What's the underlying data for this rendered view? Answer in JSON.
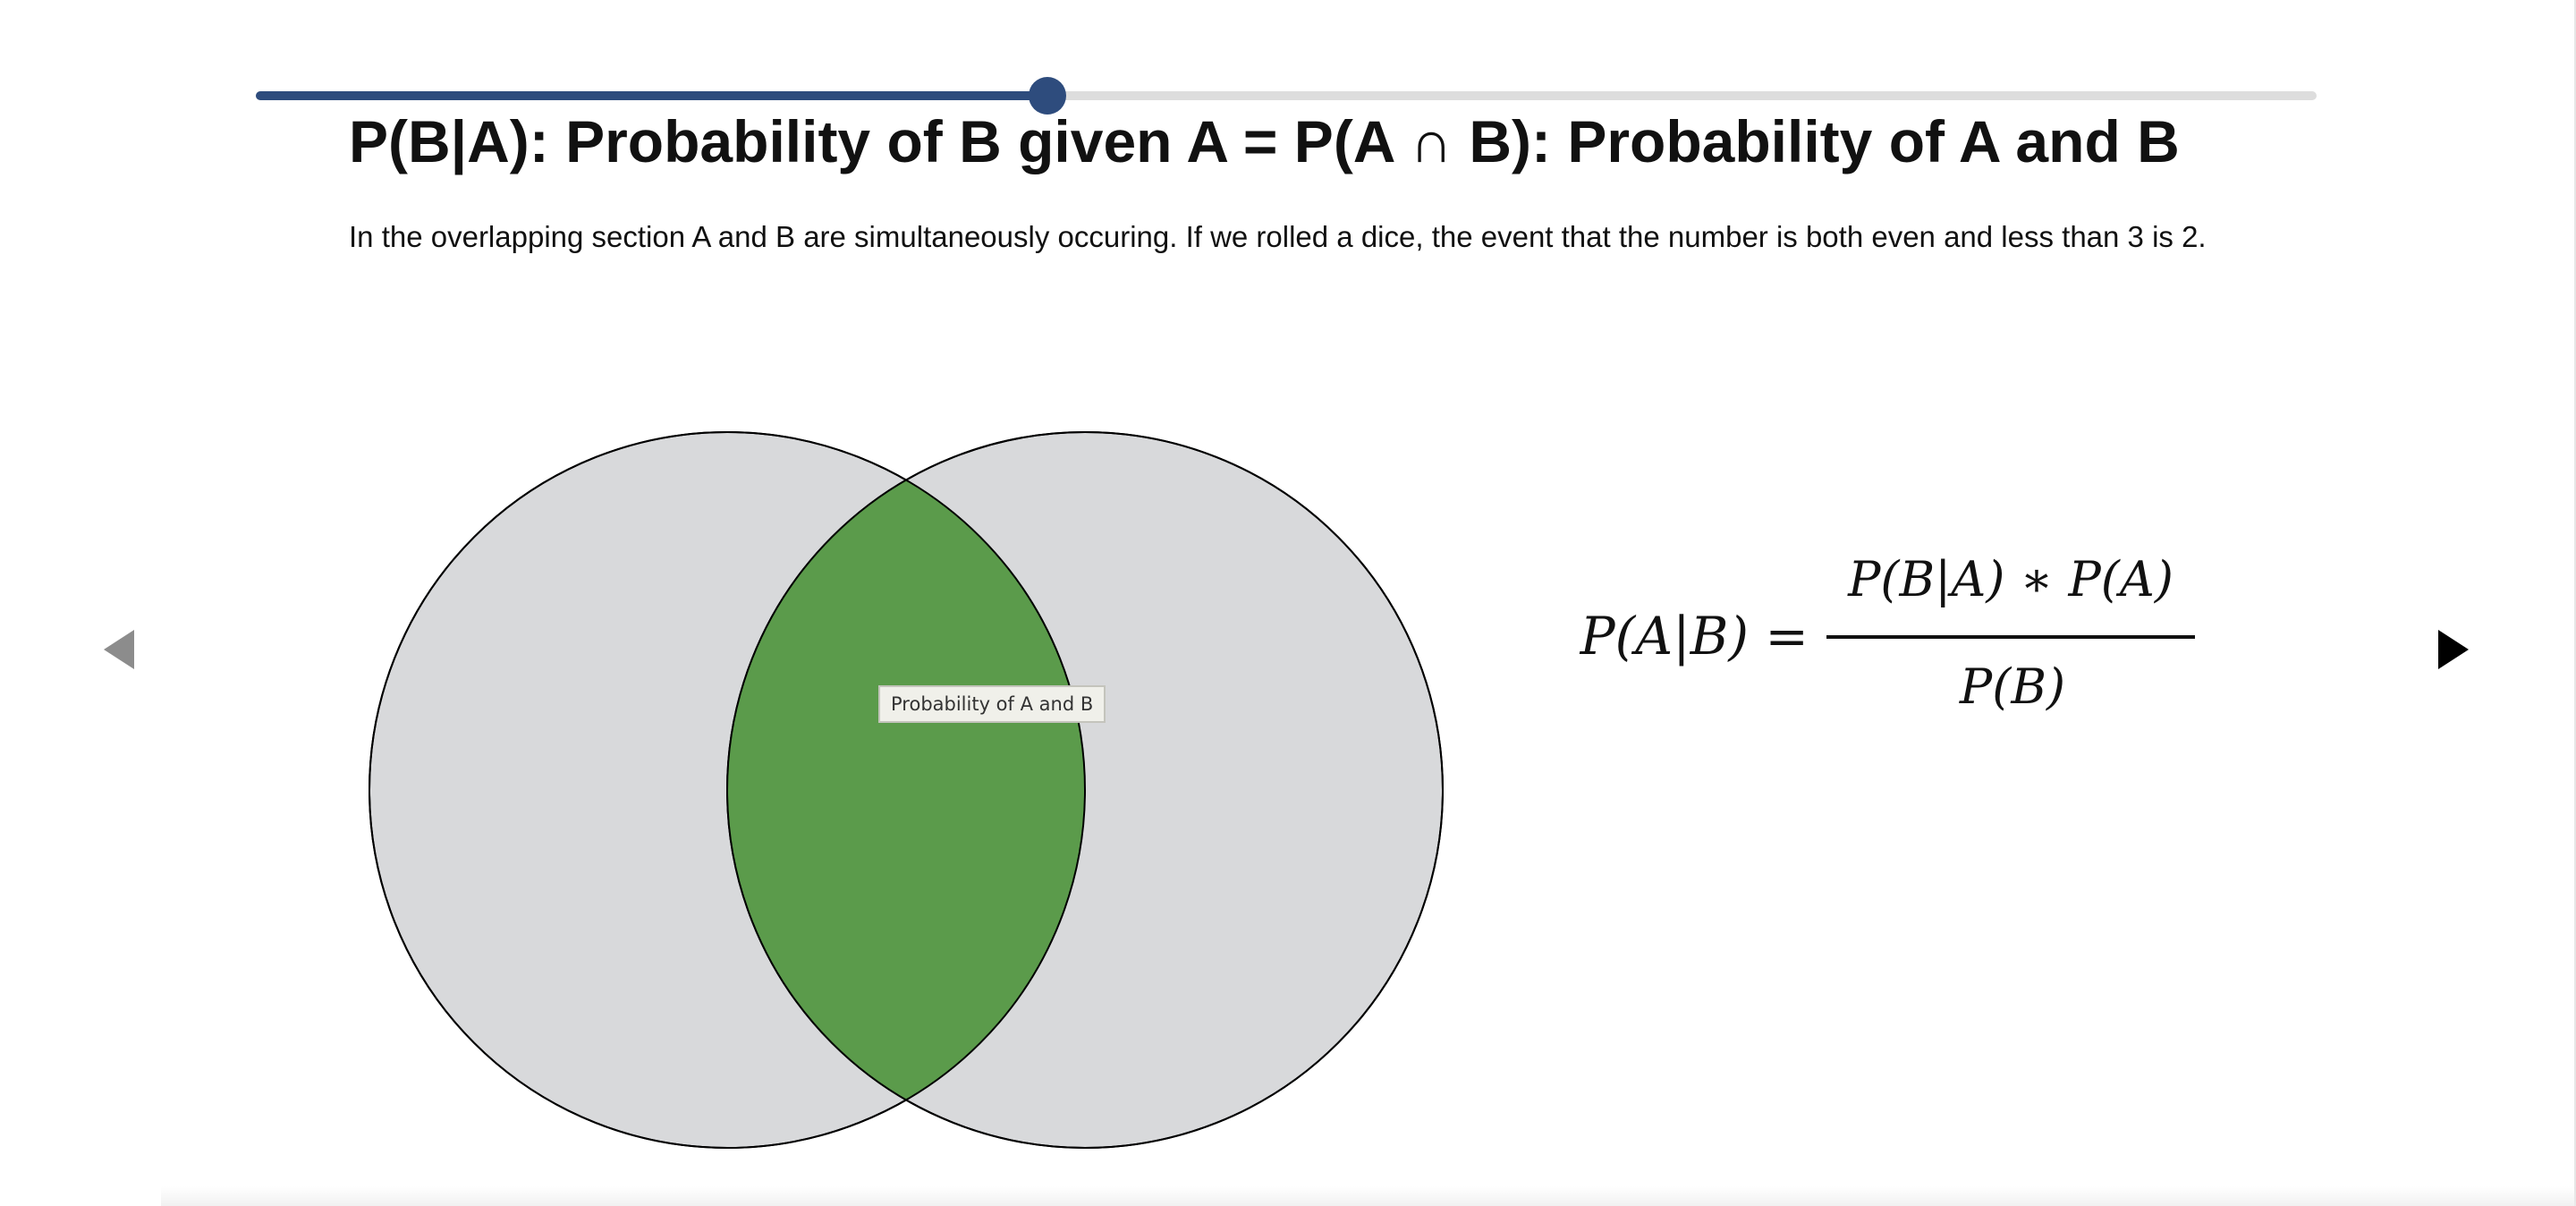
{
  "progress": {
    "fraction": 0.384
  },
  "slide": {
    "title": "P(B|A): Probability of B given A = P(A ∩ B): Probability of A and B",
    "description": "In the overlapping section A and B are simultaneously occuring. If we rolled a dice, the event that the number is both even and less than 3 is 2."
  },
  "venn": {
    "tooltip": "Probability of A and B",
    "colors": {
      "circle_fill": "#d8d9db",
      "overlap_fill": "#5b9b4b",
      "outline": "#000000"
    }
  },
  "formula": {
    "lhs": "P(A|B) =",
    "numerator": "P(B|A) ∗ P(A)",
    "denominator": "P(B)"
  },
  "navigation": {
    "prev_icon": "triangle-left-icon",
    "next_icon": "triangle-right-icon"
  }
}
